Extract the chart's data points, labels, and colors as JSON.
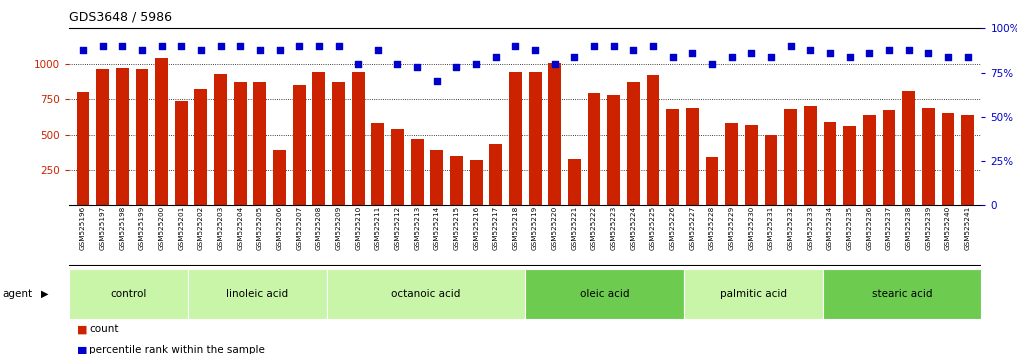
{
  "title": "GDS3648 / 5986",
  "samples": [
    "GSM525196",
    "GSM525197",
    "GSM525198",
    "GSM525199",
    "GSM525200",
    "GSM525201",
    "GSM525202",
    "GSM525203",
    "GSM525204",
    "GSM525205",
    "GSM525206",
    "GSM525207",
    "GSM525208",
    "GSM525209",
    "GSM525210",
    "GSM525211",
    "GSM525212",
    "GSM525213",
    "GSM525214",
    "GSM525215",
    "GSM525216",
    "GSM525217",
    "GSM525218",
    "GSM525219",
    "GSM525220",
    "GSM525221",
    "GSM525222",
    "GSM525223",
    "GSM525224",
    "GSM525225",
    "GSM525226",
    "GSM525227",
    "GSM525228",
    "GSM525229",
    "GSM525230",
    "GSM525231",
    "GSM525232",
    "GSM525233",
    "GSM525234",
    "GSM525235",
    "GSM525236",
    "GSM525237",
    "GSM525238",
    "GSM525239",
    "GSM525240",
    "GSM525241"
  ],
  "counts": [
    800,
    960,
    970,
    960,
    1040,
    740,
    820,
    930,
    870,
    870,
    390,
    850,
    940,
    870,
    940,
    580,
    540,
    470,
    390,
    350,
    320,
    430,
    940,
    940,
    1005,
    330,
    790,
    780,
    870,
    920,
    680,
    690,
    340,
    580,
    570,
    500,
    680,
    700,
    590,
    560,
    640,
    670,
    810,
    690,
    650,
    640
  ],
  "percentiles": [
    88,
    90,
    90,
    88,
    90,
    90,
    88,
    90,
    90,
    88,
    88,
    90,
    90,
    90,
    80,
    88,
    80,
    78,
    70,
    78,
    80,
    84,
    90,
    88,
    80,
    84,
    90,
    90,
    88,
    90,
    84,
    86,
    80,
    84,
    86,
    84,
    90,
    88,
    86,
    84,
    86,
    88,
    88,
    86,
    84,
    84
  ],
  "groups": [
    {
      "label": "control",
      "start": 0,
      "end": 6
    },
    {
      "label": "linoleic acid",
      "start": 6,
      "end": 13
    },
    {
      "label": "octanoic acid",
      "start": 13,
      "end": 23
    },
    {
      "label": "oleic acid",
      "start": 23,
      "end": 31
    },
    {
      "label": "palmitic acid",
      "start": 31,
      "end": 38
    },
    {
      "label": "stearic acid",
      "start": 38,
      "end": 46
    }
  ],
  "bar_color": "#cc2200",
  "dot_color": "#0000cc",
  "ylim_left": [
    0,
    1250
  ],
  "ylim_right": [
    0,
    100
  ],
  "yticks_left": [
    250,
    500,
    750,
    1000
  ],
  "yticks_right": [
    0,
    25,
    50,
    75,
    100
  ],
  "group_colors_light": "#c0f0a0",
  "group_colors_dark": "#60d040",
  "agent_label": "agent",
  "legend_count": "count",
  "legend_percentile": "percentile rank within the sample"
}
